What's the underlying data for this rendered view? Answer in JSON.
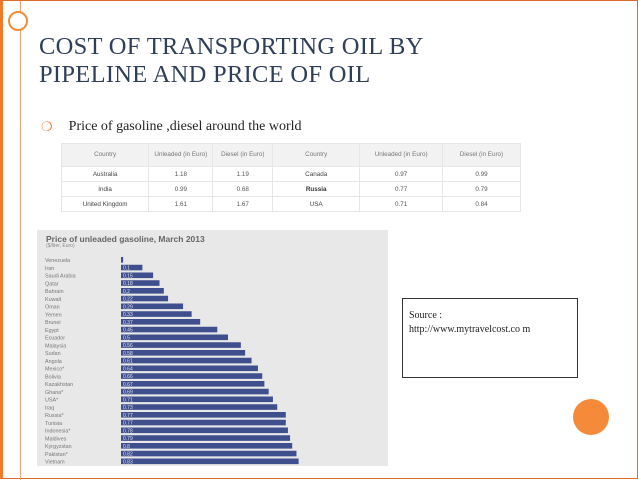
{
  "slide": {
    "title_line1": "COST OF TRANSPORTING OIL BY",
    "title_line2": "PIPELINE AND PRICE OF OIL",
    "bullet": "Price of gasoline ,diesel  around the world",
    "source_label": "Source :",
    "source_url": "http://www.mytravelcost.co m"
  },
  "price_table": {
    "headers": [
      "Country",
      "Unleaded (in Euro)",
      "Diesel (in Euro)",
      "Country",
      "Unleaded (in Euro)",
      "Diesel (in Euro)"
    ],
    "rows": [
      [
        "Australia",
        "1.18",
        "1.19",
        "Canada",
        "0.97",
        "0.99"
      ],
      [
        "India",
        "0.99",
        "0.68",
        "Russia",
        "0.77",
        "0.79"
      ],
      [
        "United Kingdom",
        "1.61",
        "1.67",
        "USA",
        "0.71",
        "0.84"
      ]
    ]
  },
  "chart_data": {
    "type": "bar",
    "orientation": "horizontal",
    "title": "Price of unleaded gasoline, March 2013",
    "subtitle": "($/liter, Euro)",
    "categories": [
      "Venezuela",
      "Iran",
      "Saudi Arabia",
      "Qatar",
      "Bahrain",
      "Kuwait",
      "Oman",
      "Yemen",
      "Brunei",
      "Egypt",
      "Ecuador",
      "Malaysia",
      "Sudan",
      "Angola",
      "Mexico*",
      "Bolivia",
      "Kazakhstan",
      "Ghana*",
      "USA*",
      "Iraq",
      "Russia*",
      "Tunisia",
      "Indonesia*",
      "Maldives",
      "Kyrgyzstan",
      "Pakistan*",
      "Vietnam"
    ],
    "values": [
      0.01,
      0.1,
      0.15,
      0.18,
      0.2,
      0.22,
      0.29,
      0.33,
      0.37,
      0.45,
      0.5,
      0.56,
      0.58,
      0.61,
      0.64,
      0.66,
      0.67,
      0.69,
      0.71,
      0.73,
      0.77,
      0.77,
      0.78,
      0.79,
      0.8,
      0.82,
      0.83
    ],
    "labels": [
      "",
      "0.1",
      "0.15",
      "0.18",
      "0.2",
      "0.22",
      "0.29",
      "0.33",
      "0.37",
      "0.45",
      "0.5",
      "0.56",
      "0.58",
      "0.61",
      "0.64",
      "0.66",
      "0.67",
      "0.69",
      "0.71",
      "0.73",
      "0.77",
      "0.77",
      "0.78",
      "0.79",
      "0.8",
      "0.82",
      "0.83"
    ],
    "xlim": [
      0,
      1.5
    ],
    "bar_color": "#3f4e8c",
    "grid": false
  }
}
